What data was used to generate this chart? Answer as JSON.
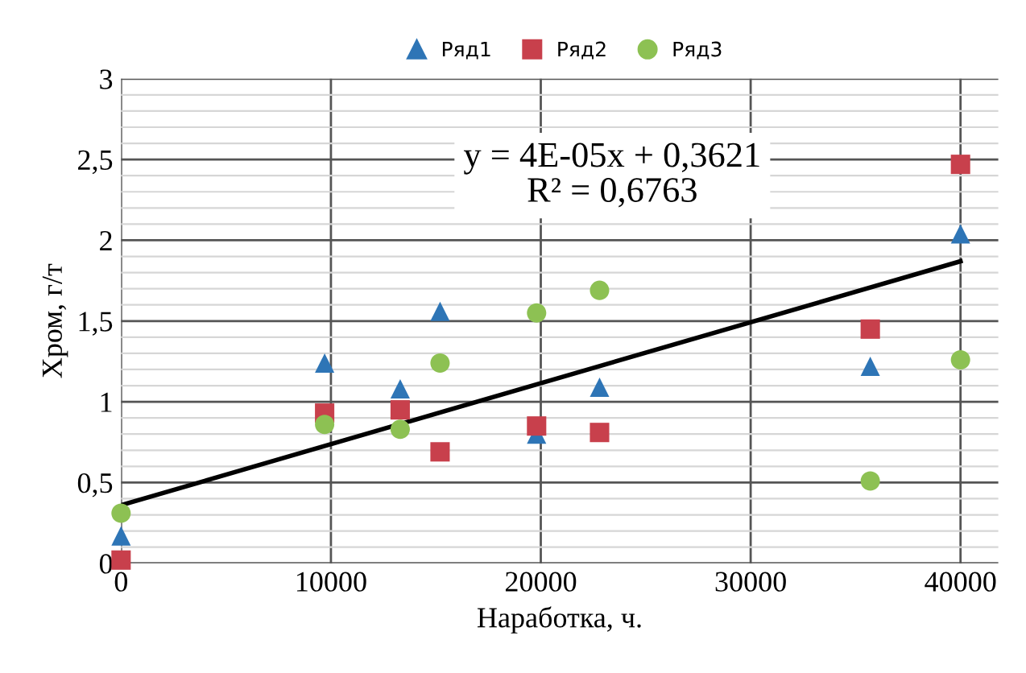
{
  "chart_data": {
    "type": "scatter",
    "xlabel": "Наработка, ч.",
    "ylabel": "Хром, г/т",
    "x": [
      0,
      9700,
      13300,
      15200,
      19800,
      22800,
      35700,
      40000
    ],
    "series": [
      {
        "name": "Ряд1",
        "color": "#2e75b6",
        "marker": "triangle",
        "values": [
          0.17,
          1.24,
          1.08,
          1.56,
          0.8,
          1.09,
          1.22,
          2.04
        ]
      },
      {
        "name": "Ряд2",
        "color": "#c8404c",
        "marker": "square",
        "values": [
          0.02,
          0.93,
          0.95,
          0.69,
          0.85,
          0.81,
          1.45,
          2.47
        ]
      },
      {
        "name": "Ряд3",
        "color": "#8dc153",
        "marker": "circle",
        "values": [
          0.31,
          0.86,
          0.83,
          1.24,
          1.55,
          1.69,
          0.51,
          1.26
        ]
      },
      {
        "type": "line",
        "color": "#000000",
        "marker": "none",
        "x": [
          0,
          40000
        ],
        "values": [
          0.36,
          1.87
        ]
      }
    ],
    "xlim": [
      0,
      41800
    ],
    "xticks": [
      0,
      10000,
      20000,
      30000,
      40000
    ],
    "ylim": [
      0,
      3
    ],
    "yticks": [
      0,
      {
        "value": 0.1,
        "label": null
      },
      {
        "value": 0.2,
        "label": null
      },
      {
        "value": 0.3,
        "label": null
      },
      {
        "value": 0.4,
        "label": null
      },
      {
        "value": 0.5,
        "label": "0,5"
      },
      {
        "value": 0.6,
        "label": null
      },
      {
        "value": 0.7,
        "label": null
      },
      {
        "value": 0.8,
        "label": null
      },
      {
        "value": 0.9,
        "label": null
      },
      1,
      {
        "value": 1.1,
        "label": null
      },
      {
        "value": 1.2,
        "label": null
      },
      {
        "value": 1.3,
        "label": null
      },
      {
        "value": 1.4,
        "label": null
      },
      {
        "value": 1.5,
        "label": "1,5"
      },
      {
        "value": 1.6,
        "label": null
      },
      {
        "value": 1.7,
        "label": null
      },
      {
        "value": 1.8,
        "label": null
      },
      {
        "value": 1.9,
        "label": null
      },
      2,
      {
        "value": 2.1,
        "label": null
      },
      {
        "value": 2.2,
        "label": null
      },
      {
        "value": 2.3,
        "label": null
      },
      {
        "value": 2.4,
        "label": null
      },
      {
        "value": 2.5,
        "label": "2,5"
      },
      {
        "value": 2.6,
        "label": null
      },
      {
        "value": 2.7,
        "label": null
      },
      {
        "value": 2.8,
        "label": null
      },
      {
        "value": 2.9,
        "label": null
      },
      3
    ],
    "grid": true,
    "legend": "top",
    "annotations": [
      "y = 4E-05x + 0,3621",
      "R² = 0,6763"
    ]
  }
}
